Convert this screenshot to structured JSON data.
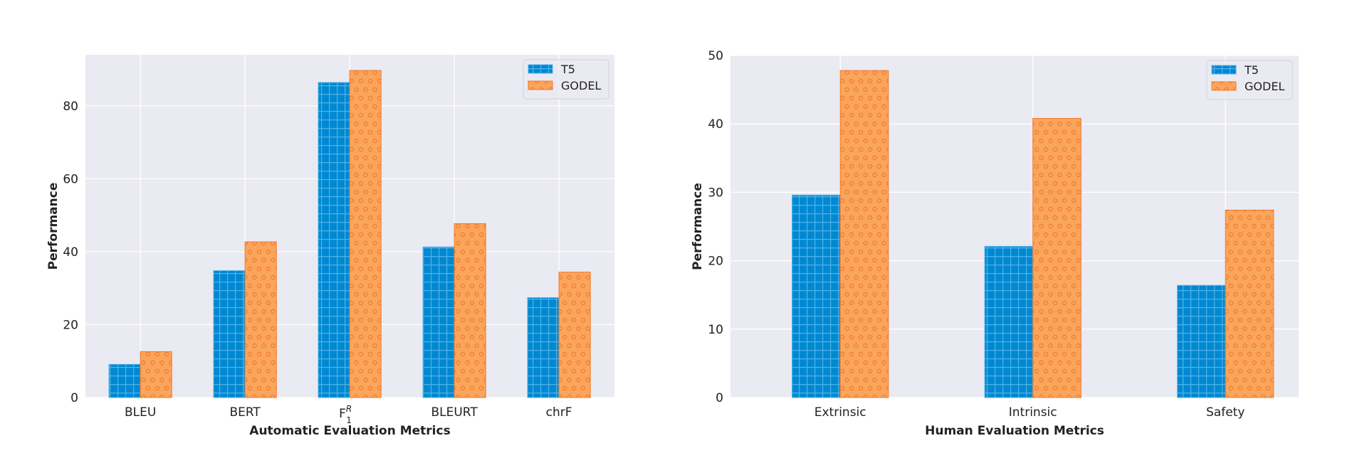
{
  "colors": {
    "T5": "#0088d1",
    "T5_hatch": "#4fb3ea",
    "GODEL": "#fba45c",
    "GODEL_edge": "#f07c2c",
    "plot_bg": "#eaeaf2",
    "grid": "#ffffff"
  },
  "chart_data": [
    {
      "type": "bar",
      "title": "",
      "xlabel": "Automatic Evaluation Metrics",
      "ylabel": "Performance",
      "categories": [
        "BLEU",
        "BERT",
        "F1^R",
        "BLEURT",
        "chrF"
      ],
      "series": [
        {
          "name": "T5",
          "values": [
            9.1,
            34.8,
            86.4,
            41.3,
            27.4
          ],
          "hatch": "grid"
        },
        {
          "name": "GODEL",
          "values": [
            12.6,
            42.7,
            89.7,
            47.7,
            34.4
          ],
          "hatch": "circles"
        }
      ],
      "ylim": [
        0,
        94
      ],
      "yticks": [
        0,
        20,
        40,
        60,
        80
      ],
      "grid": true,
      "legend": "top-right"
    },
    {
      "type": "bar",
      "title": "",
      "xlabel": "Human Evaluation Metrics",
      "ylabel": "Performance",
      "categories": [
        "Extrinsic",
        "Intrinsic",
        "Safety"
      ],
      "series": [
        {
          "name": "T5",
          "values": [
            29.6,
            22.1,
            16.4
          ],
          "hatch": "grid"
        },
        {
          "name": "GODEL",
          "values": [
            47.8,
            40.8,
            27.4
          ],
          "hatch": "circles"
        }
      ],
      "ylim": [
        0,
        50
      ],
      "yticks": [
        0,
        10,
        20,
        30,
        40,
        50
      ],
      "grid": true,
      "legend": "top-right"
    }
  ]
}
